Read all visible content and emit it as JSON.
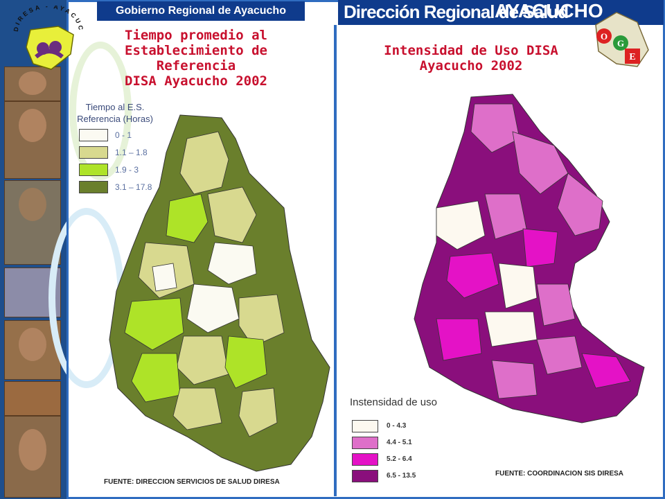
{
  "header": {
    "left_title": "Gobierno Regional de Ayacucho",
    "right_title": "Dirección Regional de Salud",
    "right_region": "AYACUCHO"
  },
  "logo": {
    "arc_text": "DIRESA - AYACUCHO"
  },
  "oge_logo": {
    "letters": [
      "O",
      "G",
      "E"
    ]
  },
  "left_map": {
    "title_lines": [
      "Tiempo promedio al",
      "Establecimiento de Referencia",
      "DISA Ayacucho 2002"
    ],
    "legend_title_lines": [
      "Tiempo al E.S.",
      "Referencia (Horas)"
    ],
    "legend": [
      {
        "label": "0  - 1",
        "color": "#fbfaf2"
      },
      {
        "label": "1.1 – 1.8",
        "color": "#d8d98f"
      },
      {
        "label": "1.9 - 3",
        "color": "#aee328"
      },
      {
        "label": "3.1 – 17.8",
        "color": "#6a7f2c"
      }
    ],
    "source": "FUENTE: DIRECCION SERVICIOS DE SALUD DIRESA"
  },
  "right_map": {
    "title_lines": [
      "Intensidad de Uso DISA",
      "Ayacucho 2002"
    ],
    "legend_title": "Instensidad de uso",
    "legend": [
      {
        "label": "0 - 4.3",
        "color": "#fdf9f0"
      },
      {
        "label": "4.4 - 5.1",
        "color": "#de6fc9"
      },
      {
        "label": "5.2 - 6.4",
        "color": "#e412c6"
      },
      {
        "label": "6.5 - 13.5",
        "color": "#8a0f7c"
      }
    ],
    "source": "FUENTE: COORDINACION SIS DIRESA"
  }
}
